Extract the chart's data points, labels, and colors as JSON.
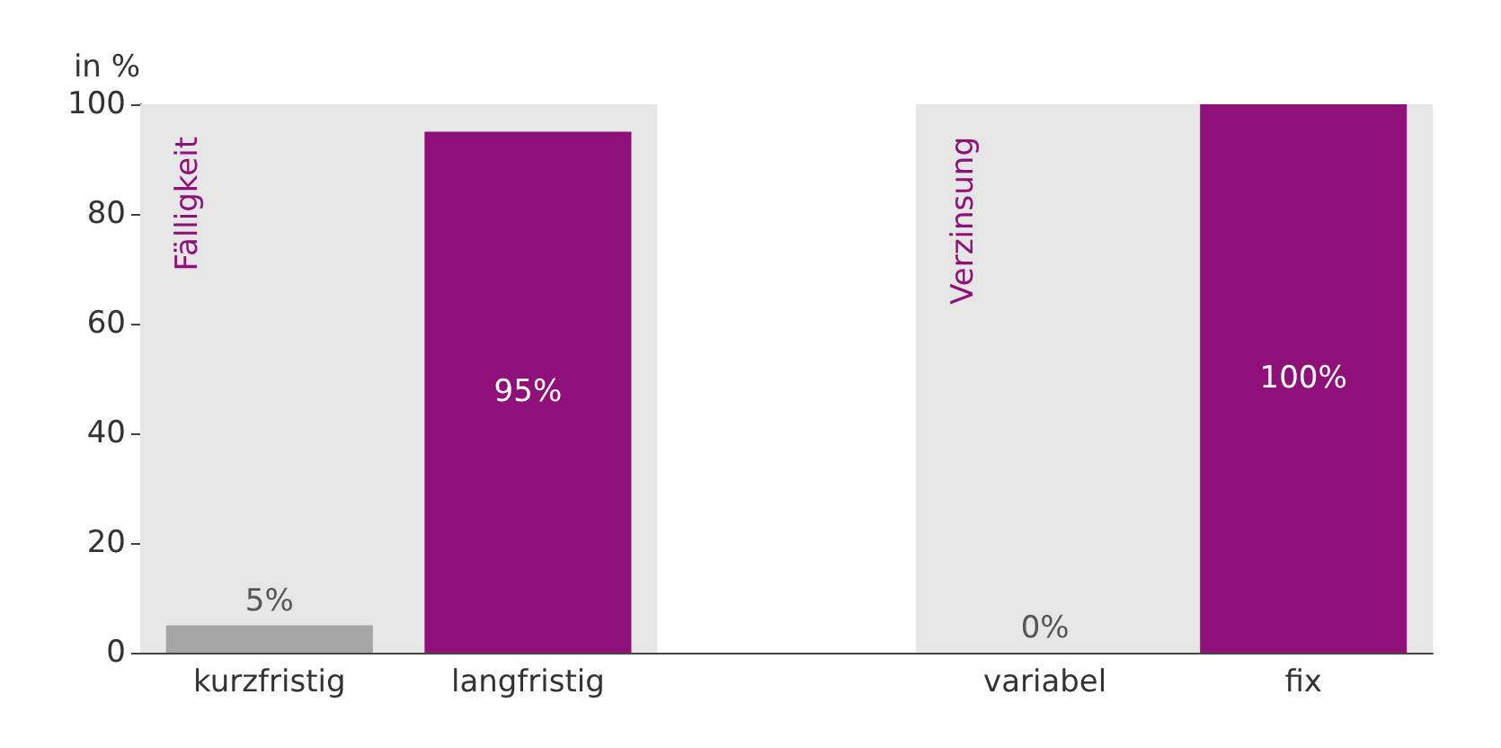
{
  "chart_data": {
    "type": "bar",
    "ylabel": "in %",
    "categories": [
      "kurzfristig",
      "langfristig",
      null,
      "variabel",
      "fix"
    ],
    "values": [
      5,
      95,
      null,
      0,
      100
    ],
    "colors": [
      "#a6a6a6",
      "#8e1078",
      null,
      "#a6a6a6",
      "#8e1078"
    ],
    "value_labels": [
      "5%",
      "95%",
      null,
      "0%",
      "100%"
    ],
    "ylim": [
      0,
      100
    ],
    "yticks": [
      0,
      20,
      40,
      60,
      80,
      100
    ],
    "grid": false,
    "bands": [
      {
        "axis": "x",
        "from": "kurzfristig",
        "to": "langfristig",
        "label": "Fälligkeit",
        "color": "#e6e6e6"
      },
      {
        "axis": "x",
        "from": "variabel",
        "to": "fix",
        "label": "Verzinsung",
        "color": "#e6e6e6"
      }
    ]
  }
}
